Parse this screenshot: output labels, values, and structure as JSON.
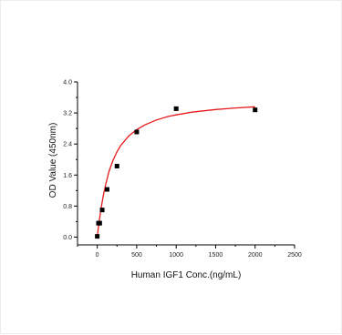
{
  "chart_data": {
    "type": "scatter",
    "title": "",
    "xlabel": "Human IGF1 Conc.(ng/mL)",
    "ylabel": "OD Value (450nm)",
    "xlim": [
      -250,
      2500
    ],
    "ylim": [
      -0.2,
      4.0
    ],
    "x_ticks": [
      0,
      500,
      1000,
      1500,
      2000,
      2500
    ],
    "x_tick_labels": [
      "0",
      "500",
      "1000",
      "1500",
      "2000",
      "2500"
    ],
    "y_ticks": [
      0.0,
      0.8,
      1.6,
      2.4,
      3.2,
      4.0
    ],
    "y_tick_labels": [
      "0.0",
      "0.8",
      "1.6",
      "2.4",
      "3.2",
      "4.0"
    ],
    "grid": false,
    "legend": "none",
    "series": [
      {
        "kind": "points",
        "marker": "square",
        "color": "#000000",
        "x": [
          0,
          15.6,
          31.25,
          62.5,
          125,
          250,
          500,
          1000,
          2000
        ],
        "y": [
          0.02,
          0.36,
          0.36,
          0.7,
          1.23,
          1.83,
          2.71,
          3.31,
          3.28
        ]
      },
      {
        "kind": "fit-curve",
        "color": "#e8191a",
        "x": [
          0,
          10,
          20,
          35,
          50,
          75,
          100,
          150,
          200,
          250,
          300,
          400,
          500,
          600,
          750,
          900,
          1000,
          1200,
          1500,
          1750,
          2000
        ],
        "y": [
          0.0,
          0.18,
          0.34,
          0.56,
          0.76,
          1.05,
          1.3,
          1.7,
          1.98,
          2.2,
          2.37,
          2.61,
          2.77,
          2.89,
          3.02,
          3.11,
          3.15,
          3.22,
          3.29,
          3.33,
          3.36
        ]
      }
    ]
  }
}
